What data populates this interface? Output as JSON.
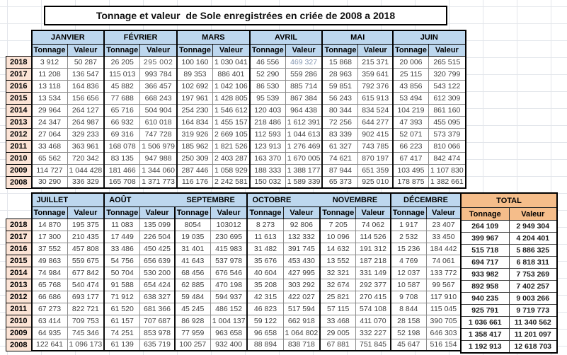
{
  "title": "Tonnage et valeur  de Sole enregistrées en criée de 2008 a 2018",
  "colors": {
    "header_blue": "#bdd7ee",
    "year_peach": "#fce4d6",
    "total_orange": "#f5bd8a",
    "data_text": "#404040",
    "special_blue_value": "#8496b0",
    "special_gray_value": "#595959"
  },
  "sub_headers": [
    "Tonnage",
    "Valeur"
  ],
  "years": [
    "2018",
    "2017",
    "2016",
    "2015",
    "2014",
    "2013",
    "2012",
    "2011",
    "2010",
    "2009",
    "2008"
  ],
  "table1": {
    "months": [
      "JANVIER",
      "FÉVRIER",
      "MARS",
      "AVRIL",
      "MAI",
      "JUIN"
    ],
    "rows": [
      [
        "3 912",
        "50 287",
        "26 205",
        "295 002",
        "100 160",
        "1 030 041",
        "46 556",
        "469 327",
        "15 868",
        "215 371",
        "20 006",
        "265 515"
      ],
      [
        "11 208",
        "136 547",
        "115 013",
        "993 784",
        "89 353",
        "886 401",
        "52 290",
        "559 286",
        "28 963",
        "359 641",
        "25 115",
        "320 799"
      ],
      [
        "13 118",
        "164 836",
        "45 882",
        "366 457",
        "102 692",
        "1 042 106",
        "86 530",
        "885 714",
        "59 851",
        "792 376",
        "43 856",
        "543 122"
      ],
      [
        "13 534",
        "156 656",
        "77 688",
        "668 243",
        "197 961",
        "1 428 805",
        "95 539",
        "867 384",
        "56 243",
        "615 913",
        "53 494",
        "612 309"
      ],
      [
        "29 964",
        "264 127",
        "65 716",
        "504 904",
        "254 230",
        "1 546 612",
        "120 403",
        "964 438",
        "80 344",
        "834 524",
        "104 219",
        "861 160"
      ],
      [
        "24 347",
        "264 987",
        "66 932",
        "610 018",
        "164 834",
        "1 455 157",
        "218 486",
        "1 612 391",
        "72 256",
        "644 277",
        "47 393",
        "455 095"
      ],
      [
        "27 064",
        "329 233",
        "69 316",
        "747 728",
        "319 926",
        "2 669 105",
        "112 593",
        "1 044 613",
        "83 339",
        "902 415",
        "52 071",
        "573 379"
      ],
      [
        "33 468",
        "363 961",
        "168 078",
        "1 506 979",
        "185 962",
        "1 821 526",
        "123 913",
        "1 276 469",
        "61 327",
        "743 785",
        "66 223",
        "810 066"
      ],
      [
        "65 562",
        "720 342",
        "83 135",
        "947 988",
        "250 309",
        "2 403 287",
        "163 370",
        "1 670 005",
        "74 621",
        "870 197",
        "67 417",
        "842 474"
      ],
      [
        "114 727",
        "1 044 428",
        "181 466",
        "1 344 060",
        "287 446",
        "1 058 929",
        "188 333",
        "1 388 177",
        "87 944",
        "651 359",
        "103 495",
        "1 107 830"
      ],
      [
        "30 290",
        "336 329",
        "165 708",
        "1 371 773",
        "116 176",
        "2 242 581",
        "150 032",
        "1 589 339",
        "65 373",
        "925 010",
        "178 875",
        "1 382 661"
      ]
    ]
  },
  "table2": {
    "months": [
      "JUILLET",
      "AOÛT",
      "SEPTEMBRE",
      "OCTOBRE",
      "NOVEMBRE",
      "DÉCEMBRE"
    ],
    "rows": [
      [
        "14 870",
        "195 375",
        "11 083",
        "135 099",
        "8054",
        "103012",
        "8 273",
        "92 806",
        "7 205",
        "74 062",
        "1 917",
        "23 407"
      ],
      [
        "17 300",
        "210 435",
        "17 449",
        "226 504",
        "19 035",
        "230 695",
        "11 613",
        "132 332",
        "10 096",
        "114 526",
        "2 532",
        "33 450"
      ],
      [
        "37 552",
        "457 808",
        "33 486",
        "450 425",
        "31 401",
        "415 983",
        "31 482",
        "391 745",
        "14 632",
        "191 312",
        "15 236",
        "184 442"
      ],
      [
        "49 863",
        "559 675",
        "54 756",
        "656 639",
        "41 643",
        "537 978",
        "35 676",
        "453 430",
        "13 552",
        "187 218",
        "4 769",
        "74 061"
      ],
      [
        "74 984",
        "677 842",
        "50 704",
        "530 200",
        "68 456",
        "676 546",
        "40 604",
        "427 995",
        "32 321",
        "331 149",
        "12 037",
        "133 772"
      ],
      [
        "65 768",
        "540 474",
        "91 588",
        "654 424",
        "62 885",
        "470 198",
        "35 208",
        "303 292",
        "32 674",
        "292 377",
        "10 587",
        "99 567"
      ],
      [
        "66 686",
        "693 177",
        "71 912",
        "638 327",
        "59 484",
        "594 937",
        "42 315",
        "422 027",
        "25 821",
        "270 415",
        "9 708",
        "117 910"
      ],
      [
        "67 273",
        "822 721",
        "61 520",
        "681 366",
        "45 245",
        "486 152",
        "46 823",
        "517 594",
        "57 115",
        "574 108",
        "8 844",
        "115 045"
      ],
      [
        "63 414",
        "709 753",
        "61 157",
        "707 687",
        "86 928",
        "1 004 137",
        "59 122",
        "662 918",
        "33 468",
        "411 070",
        "28 158",
        "390 705"
      ],
      [
        "64 935",
        "745 346",
        "74 251",
        "853 978",
        "77 959",
        "963 658",
        "96 658",
        "1 064 802",
        "29 005",
        "332 227",
        "52 198",
        "646 303"
      ],
      [
        "122 641",
        "1 096 173",
        "61 139",
        "635 719",
        "100 257",
        "932 400",
        "88 894",
        "838 718",
        "67 881",
        "751 845",
        "45 647",
        "516 154"
      ]
    ]
  },
  "total": {
    "label": "TOTAL",
    "rows": [
      [
        "264 109",
        "2 949 304"
      ],
      [
        "399 967",
        "4 204 401"
      ],
      [
        "515 718",
        "5 886 325"
      ],
      [
        "694 717",
        "6 818 311"
      ],
      [
        "933 982",
        "7 753 269"
      ],
      [
        "892 958",
        "7 402 257"
      ],
      [
        "940 235",
        "9 003 266"
      ],
      [
        "925 791",
        "9 719 773"
      ],
      [
        "1 036 661",
        "11 340 562"
      ],
      [
        "1 358 417",
        "11 201 097"
      ],
      [
        "1 192 913",
        "12 618 703"
      ]
    ]
  }
}
